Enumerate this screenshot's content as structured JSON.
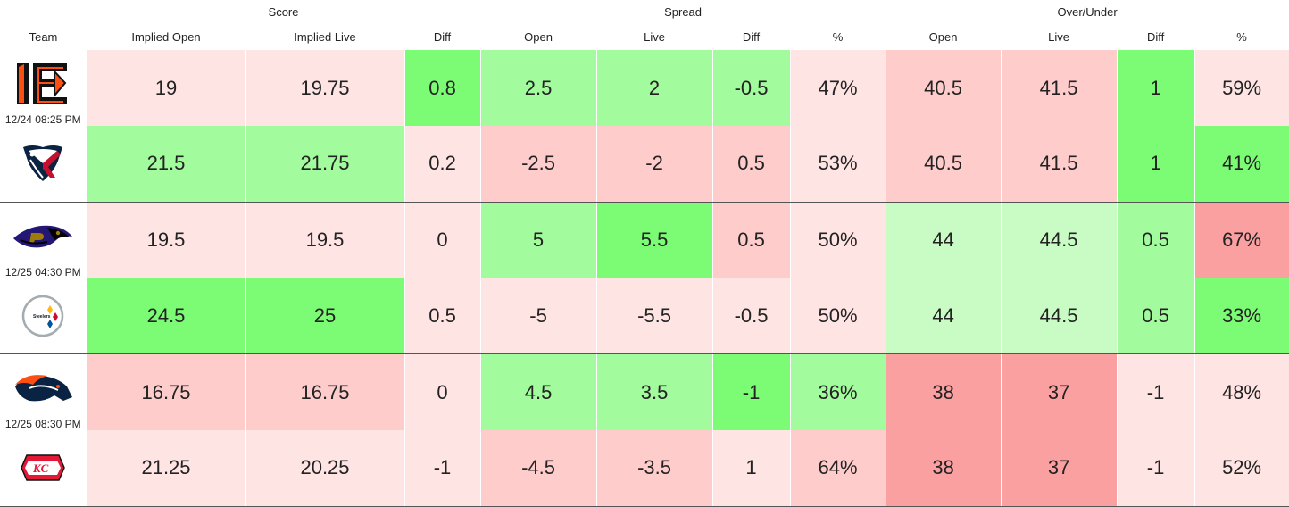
{
  "groups": {
    "score": "Score",
    "spread": "Spread",
    "over_under": "Over/Under"
  },
  "columns": {
    "team": "Team",
    "implied_open": "Implied Open",
    "implied_live": "Implied Live",
    "score_diff": "Diff",
    "spread_open": "Open",
    "spread_live": "Live",
    "spread_diff": "Diff",
    "spread_pct": "%",
    "ou_open": "Open",
    "ou_live": "Live",
    "ou_diff": "Diff",
    "ou_pct": "%"
  },
  "games": [
    {
      "time": "12/24 08:25 PM",
      "teams": [
        {
          "logo": "bengals-logo-icon",
          "implied_open": "19",
          "implied_live": "19.75",
          "score_diff": "0.8",
          "spread_open": "2.5",
          "spread_live": "2",
          "spread_diff": "-0.5",
          "spread_pct": "47%",
          "ou_open": "40.5",
          "ou_live": "41.5",
          "ou_diff": "1",
          "ou_pct": "59%"
        },
        {
          "logo": "texans-logo-icon",
          "implied_open": "21.5",
          "implied_live": "21.75",
          "score_diff": "0.2",
          "spread_open": "-2.5",
          "spread_live": "-2",
          "spread_diff": "0.5",
          "spread_pct": "53%",
          "ou_open": "40.5",
          "ou_live": "41.5",
          "ou_diff": "1",
          "ou_pct": "41%"
        }
      ]
    },
    {
      "time": "12/25 04:30 PM",
      "teams": [
        {
          "logo": "ravens-logo-icon",
          "implied_open": "19.5",
          "implied_live": "19.5",
          "score_diff": "0",
          "spread_open": "5",
          "spread_live": "5.5",
          "spread_diff": "0.5",
          "spread_pct": "50%",
          "ou_open": "44",
          "ou_live": "44.5",
          "ou_diff": "0.5",
          "ou_pct": "67%"
        },
        {
          "logo": "steelers-logo-icon",
          "logo_text": "Steelers",
          "implied_open": "24.5",
          "implied_live": "25",
          "score_diff": "0.5",
          "spread_open": "-5",
          "spread_live": "-5.5",
          "spread_diff": "-0.5",
          "spread_pct": "50%",
          "ou_open": "44",
          "ou_live": "44.5",
          "ou_diff": "0.5",
          "ou_pct": "33%"
        }
      ]
    },
    {
      "time": "12/25 08:30 PM",
      "teams": [
        {
          "logo": "broncos-logo-icon",
          "implied_open": "16.75",
          "implied_live": "16.75",
          "score_diff": "0",
          "spread_open": "4.5",
          "spread_live": "3.5",
          "spread_diff": "-1",
          "spread_pct": "36%",
          "ou_open": "38",
          "ou_live": "37",
          "ou_diff": "-1",
          "ou_pct": "48%"
        },
        {
          "logo": "chiefs-logo-icon",
          "logo_text": "KC",
          "implied_open": "21.25",
          "implied_live": "20.25",
          "score_diff": "-1",
          "spread_open": "-4.5",
          "spread_live": "-3.5",
          "spread_diff": "1",
          "spread_pct": "64%",
          "ou_open": "38",
          "ou_live": "37",
          "ou_diff": "-1",
          "ou_pct": "52%"
        }
      ]
    }
  ],
  "colors": {
    "pink_light": "#ffe4e4",
    "pink": "#ffcccc",
    "red": "#fba0a0",
    "green_light": "#c9fcc4",
    "green": "#a2fb9c",
    "green_strong": "#7cfc75"
  }
}
